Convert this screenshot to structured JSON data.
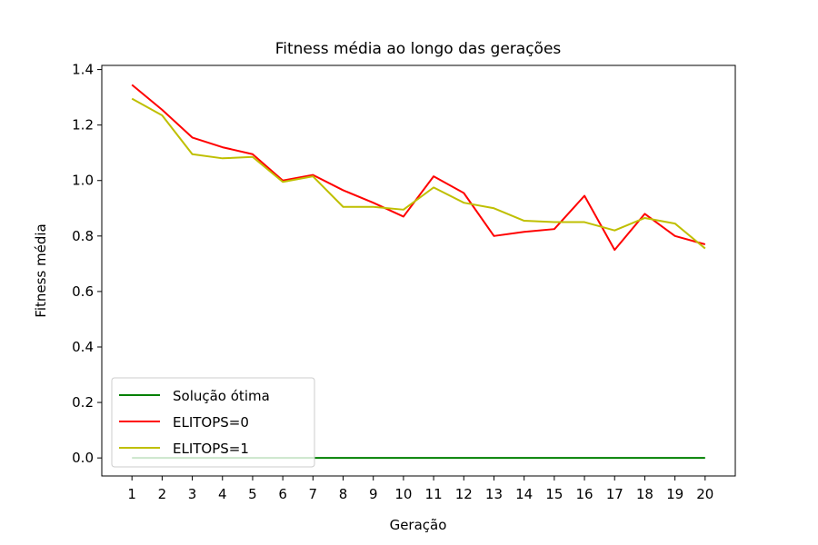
{
  "chart_data": {
    "type": "line",
    "title": "Fitness média ao longo das gerações",
    "xlabel": "Geração",
    "ylabel": "Fitness média",
    "x": [
      1,
      2,
      3,
      4,
      5,
      6,
      7,
      8,
      9,
      10,
      11,
      12,
      13,
      14,
      15,
      16,
      17,
      18,
      19,
      20
    ],
    "x_ticks": [
      "1",
      "2",
      "3",
      "4",
      "5",
      "6",
      "7",
      "8",
      "9",
      "10",
      "11",
      "12",
      "13",
      "14",
      "15",
      "16",
      "17",
      "18",
      "19",
      "20"
    ],
    "y_ticks": [
      "0.0",
      "0.2",
      "0.4",
      "0.6",
      "0.8",
      "1.0",
      "1.2",
      "1.4"
    ],
    "xlim": [
      0.0,
      21.0
    ],
    "ylim": [
      -0.065,
      1.415
    ],
    "grid": false,
    "legend_position": "lower-left",
    "series": [
      {
        "name": "Solução ótima",
        "color": "#008000",
        "values": [
          0,
          0,
          0,
          0,
          0,
          0,
          0,
          0,
          0,
          0,
          0,
          0,
          0,
          0,
          0,
          0,
          0,
          0,
          0,
          0
        ]
      },
      {
        "name": "ELITOPS=0",
        "color": "#ff0000",
        "values": [
          1.345,
          1.255,
          1.155,
          1.12,
          1.095,
          1.0,
          1.02,
          0.965,
          0.92,
          0.87,
          1.015,
          0.955,
          0.8,
          0.815,
          0.825,
          0.945,
          0.75,
          0.88,
          0.8,
          0.77
        ]
      },
      {
        "name": "ELITOPS=1",
        "color": "#bfbf00",
        "values": [
          1.295,
          1.235,
          1.095,
          1.08,
          1.085,
          0.995,
          1.015,
          0.905,
          0.905,
          0.895,
          0.975,
          0.92,
          0.9,
          0.855,
          0.85,
          0.85,
          0.82,
          0.865,
          0.845,
          0.755
        ]
      }
    ]
  }
}
